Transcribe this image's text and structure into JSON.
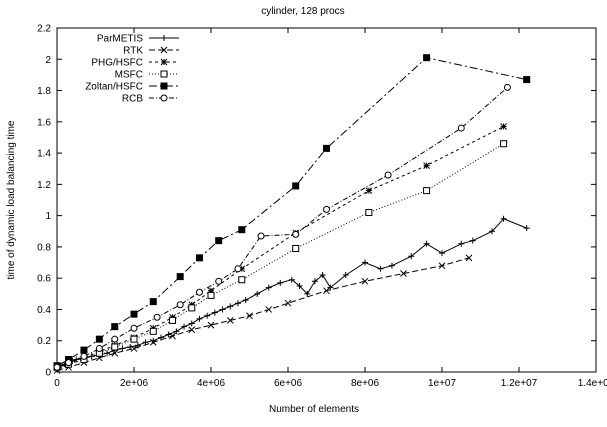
{
  "chart_data": {
    "type": "line",
    "title": "cylinder, 128 procs",
    "xlabel": "Number of elements",
    "ylabel": "time of dynamic load balancing time",
    "xlim": [
      0,
      14000000
    ],
    "ylim": [
      0,
      2.2
    ],
    "xticks": [
      0,
      2000000,
      4000000,
      6000000,
      8000000,
      10000000,
      12000000,
      14000000
    ],
    "xtick_labels": [
      "0",
      "2e+06",
      "4e+06",
      "6e+06",
      "8e+06",
      "1e+07",
      "1.2e+07",
      "1.4e+07"
    ],
    "yticks": [
      0,
      0.2,
      0.4,
      0.6,
      0.8,
      1,
      1.2,
      1.4,
      1.6,
      1.8,
      2,
      2.2
    ],
    "ytick_labels": [
      "0",
      "0.2",
      "0.4",
      "0.6",
      "0.8",
      "1",
      "1.2",
      "1.4",
      "1.6",
      "1.8",
      "2",
      "2.2"
    ],
    "grid": false,
    "legend_position": "top-left",
    "series": [
      {
        "name": "ParMETIS",
        "marker": "plus",
        "dash": "",
        "x": [
          0,
          50000,
          100000,
          200000,
          300000,
          400000,
          500000,
          700000,
          900000,
          1100000,
          1300000,
          1500000,
          1700000,
          1900000,
          2100000,
          2300000,
          2500000,
          2700000,
          2900000,
          3100000,
          3300000,
          3500000,
          3700000,
          3900000,
          4100000,
          4300000,
          4500000,
          4700000,
          4900000,
          5200000,
          5500000,
          5800000,
          6100000,
          6300000,
          6500000,
          6700000,
          6900000,
          7100000,
          7500000,
          8000000,
          8400000,
          8700000,
          9200000,
          9600000,
          10000000,
          10500000,
          10800000,
          11300000,
          11600000,
          12200000
        ],
        "y": [
          0.02,
          0.03,
          0.04,
          0.05,
          0.06,
          0.07,
          0.08,
          0.09,
          0.1,
          0.11,
          0.12,
          0.14,
          0.15,
          0.16,
          0.17,
          0.19,
          0.2,
          0.22,
          0.24,
          0.26,
          0.29,
          0.31,
          0.34,
          0.36,
          0.38,
          0.4,
          0.42,
          0.44,
          0.46,
          0.5,
          0.54,
          0.57,
          0.59,
          0.55,
          0.5,
          0.58,
          0.62,
          0.54,
          0.62,
          0.7,
          0.66,
          0.68,
          0.74,
          0.82,
          0.76,
          0.82,
          0.84,
          0.9,
          0.98,
          0.92
        ]
      },
      {
        "name": "RTK",
        "marker": "cross",
        "dash": "6,3",
        "x": [
          0,
          300000,
          700000,
          1100000,
          1500000,
          2000000,
          2500000,
          3000000,
          3500000,
          4000000,
          4500000,
          5000000,
          5500000,
          6000000,
          7000000,
          8000000,
          9000000,
          10000000,
          10700000
        ],
        "y": [
          0.01,
          0.03,
          0.06,
          0.09,
          0.12,
          0.15,
          0.19,
          0.23,
          0.27,
          0.3,
          0.33,
          0.36,
          0.4,
          0.44,
          0.52,
          0.58,
          0.63,
          0.68,
          0.73
        ]
      },
      {
        "name": "PHG/HSFC",
        "marker": "star",
        "dash": "3,3",
        "x": [
          0,
          300000,
          700000,
          1100000,
          1500000,
          2000000,
          2500000,
          3000000,
          3500000,
          4000000,
          4800000,
          6200000,
          8100000,
          9600000,
          11600000
        ],
        "y": [
          0.03,
          0.05,
          0.09,
          0.13,
          0.17,
          0.22,
          0.28,
          0.35,
          0.43,
          0.52,
          0.66,
          0.89,
          1.16,
          1.32,
          1.57
        ]
      },
      {
        "name": "MSFC",
        "marker": "square-open",
        "dash": "1,2",
        "x": [
          0,
          300000,
          700000,
          1100000,
          1500000,
          2000000,
          2500000,
          3000000,
          3500000,
          4000000,
          4800000,
          6200000,
          8100000,
          9600000,
          11600000
        ],
        "y": [
          0.03,
          0.05,
          0.08,
          0.12,
          0.16,
          0.21,
          0.26,
          0.33,
          0.41,
          0.49,
          0.59,
          0.79,
          1.02,
          1.16,
          1.46
        ]
      },
      {
        "name": "Zoltan/HSFC",
        "marker": "square-filled",
        "dash": "8,3,2,3",
        "x": [
          0,
          300000,
          700000,
          1100000,
          1500000,
          2000000,
          2500000,
          3200000,
          3700000,
          4200000,
          4800000,
          6200000,
          7000000,
          9600000,
          12200000
        ],
        "y": [
          0.04,
          0.08,
          0.14,
          0.21,
          0.29,
          0.37,
          0.45,
          0.61,
          0.73,
          0.84,
          0.91,
          1.19,
          1.43,
          2.01,
          1.87
        ]
      },
      {
        "name": "RCB",
        "marker": "circle-open",
        "dash": "5,2,1,2",
        "x": [
          0,
          300000,
          700000,
          1100000,
          1500000,
          2000000,
          2600000,
          3200000,
          3700000,
          4200000,
          4700000,
          5300000,
          6200000,
          7000000,
          8600000,
          10500000,
          11700000
        ],
        "y": [
          0.03,
          0.06,
          0.1,
          0.15,
          0.21,
          0.28,
          0.35,
          0.43,
          0.51,
          0.58,
          0.66,
          0.87,
          0.88,
          1.04,
          1.26,
          1.56,
          1.82
        ]
      }
    ]
  }
}
